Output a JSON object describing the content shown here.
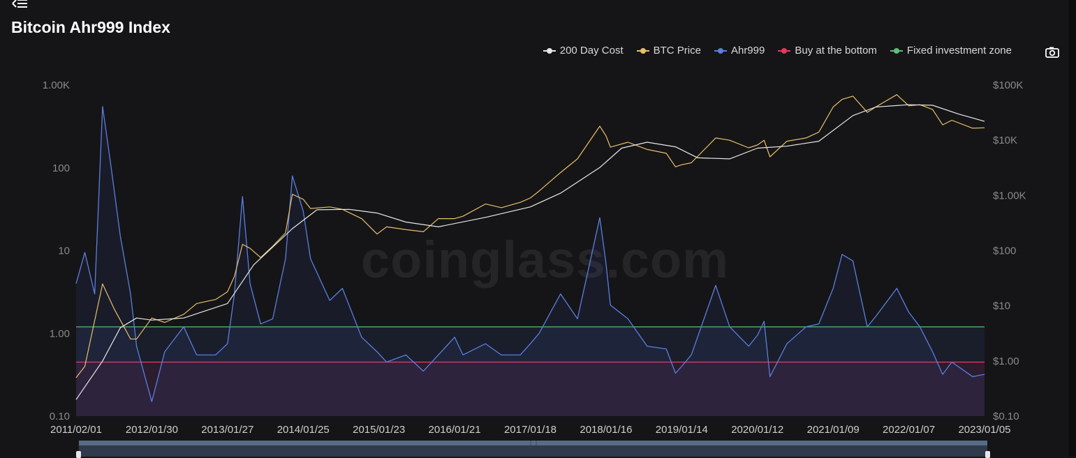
{
  "header": {
    "title": "Bitcoin Ahr999 Index",
    "menu_icon": "menu-collapse-icon",
    "camera_icon": "camera-icon"
  },
  "legend": [
    {
      "label": "200 Day Cost",
      "color": "#e8e8e8"
    },
    {
      "label": "BTC Price",
      "color": "#e9bf6a"
    },
    {
      "label": "Ahr999",
      "color": "#5b7fe0"
    },
    {
      "label": "Buy at the bottom",
      "color": "#e3395a"
    },
    {
      "label": "Fixed investment zone",
      "color": "#5ec074"
    }
  ],
  "watermark": "coinglass.com",
  "chart_data": {
    "type": "line",
    "title": "Bitcoin Ahr999 Index",
    "left_axis": {
      "scale": "log",
      "range": [
        0.1,
        1000
      ],
      "ticks": [
        "1.00K",
        "100",
        "10",
        "1.00",
        "0.10"
      ]
    },
    "right_axis": {
      "scale": "log",
      "range": [
        0.1,
        100000
      ],
      "ticks": [
        "$100K",
        "$10K",
        "$1.00K",
        "$100",
        "$10",
        "$1.00",
        "$0.10"
      ]
    },
    "x_ticks": [
      "2011/02/01",
      "2012/01/30",
      "2013/01/27",
      "2014/01/25",
      "2015/01/23",
      "2016/01/21",
      "2017/01/18",
      "2018/01/16",
      "2019/01/14",
      "2020/01/12",
      "2021/01/09",
      "2022/01/07",
      "2023/01/05"
    ],
    "thresholds": [
      {
        "name": "Fixed investment zone",
        "value": 1.2,
        "color": "#5ec074"
      },
      {
        "name": "Buy at the bottom",
        "value": 0.45,
        "color": "#e3395a"
      }
    ],
    "series": [
      {
        "name": "Ahr999",
        "axis": "left",
        "color": "#5b7fe0",
        "x": [
          "2011/02/01",
          "2011/03/15",
          "2011/05/01",
          "2011/06/08",
          "2011/07/15",
          "2011/09/01",
          "2011/10/20",
          "2011/11/18",
          "2012/01/30",
          "2012/04/01",
          "2012/07/01",
          "2012/09/01",
          "2012/12/01",
          "2013/01/27",
          "2013/03/01",
          "2013/04/09",
          "2013/05/15",
          "2013/07/05",
          "2013/09/01",
          "2013/11/01",
          "2013/12/04",
          "2014/01/25",
          "2014/03/01",
          "2014/06/01",
          "2014/08/01",
          "2014/11/01",
          "2015/01/14",
          "2015/03/01",
          "2015/06/01",
          "2015/08/24",
          "2015/11/04",
          "2016/01/21",
          "2016/03/01",
          "2016/06/17",
          "2016/09/01",
          "2016/12/01",
          "2017/01/18",
          "2017/03/01",
          "2017/06/12",
          "2017/09/01",
          "2017/12/17",
          "2018/01/16",
          "2018/02/06",
          "2018/05/01",
          "2018/08/01",
          "2018/11/01",
          "2018/12/15",
          "2019/01/14",
          "2019/03/01",
          "2019/06/26",
          "2019/09/01",
          "2019/12/01",
          "2020/01/12",
          "2020/02/13",
          "2020/03/12",
          "2020/06/01",
          "2020/09/01",
          "2020/11/01",
          "2021/01/09",
          "2021/02/21",
          "2021/04/14",
          "2021/06/22",
          "2021/08/01",
          "2021/11/10",
          "2022/01/07",
          "2022/03/01",
          "2022/05/01",
          "2022/06/18",
          "2022/08/01",
          "2022/11/09",
          "2023/01/05"
        ],
        "y": [
          4.0,
          9.5,
          3.0,
          550,
          120,
          15,
          3.0,
          0.7,
          0.15,
          0.6,
          1.2,
          0.55,
          0.55,
          0.75,
          3.0,
          45,
          4.0,
          1.3,
          1.5,
          8.0,
          80,
          30,
          8.0,
          2.5,
          3.5,
          0.9,
          0.6,
          0.45,
          0.55,
          0.35,
          0.55,
          0.9,
          0.55,
          0.75,
          0.55,
          0.55,
          0.75,
          1.0,
          3.0,
          1.5,
          25.0,
          7.0,
          2.2,
          1.5,
          0.7,
          0.65,
          0.33,
          0.4,
          0.55,
          3.8,
          1.2,
          0.7,
          0.95,
          1.4,
          0.3,
          0.75,
          1.2,
          1.3,
          3.5,
          9.0,
          7.5,
          1.2,
          1.6,
          3.5,
          1.8,
          1.2,
          0.6,
          0.32,
          0.45,
          0.3,
          0.32
        ]
      },
      {
        "name": "BTC Price",
        "axis": "right",
        "color": "#e9bf6a",
        "x": [
          "2011/02/01",
          "2011/03/15",
          "2011/06/08",
          "2011/08/01",
          "2011/10/20",
          "2011/11/18",
          "2012/01/30",
          "2012/04/01",
          "2012/07/01",
          "2012/09/01",
          "2012/12/01",
          "2013/01/27",
          "2013/03/01",
          "2013/04/09",
          "2013/05/15",
          "2013/07/05",
          "2013/09/01",
          "2013/11/01",
          "2013/12/04",
          "2014/01/25",
          "2014/03/01",
          "2014/06/01",
          "2014/08/01",
          "2014/11/01",
          "2015/01/14",
          "2015/03/01",
          "2015/06/01",
          "2015/08/24",
          "2015/11/04",
          "2016/01/21",
          "2016/03/01",
          "2016/06/17",
          "2016/09/01",
          "2016/12/01",
          "2017/01/18",
          "2017/03/01",
          "2017/06/12",
          "2017/09/01",
          "2017/12/17",
          "2018/01/16",
          "2018/02/06",
          "2018/05/01",
          "2018/08/01",
          "2018/11/01",
          "2018/12/15",
          "2019/01/14",
          "2019/03/01",
          "2019/06/26",
          "2019/09/01",
          "2019/12/01",
          "2020/01/12",
          "2020/02/13",
          "2020/03/12",
          "2020/06/01",
          "2020/09/01",
          "2020/11/01",
          "2021/01/09",
          "2021/02/21",
          "2021/04/14",
          "2021/06/22",
          "2021/08/01",
          "2021/11/10",
          "2022/01/07",
          "2022/03/01",
          "2022/05/01",
          "2022/06/18",
          "2022/08/01",
          "2022/11/09",
          "2023/01/05"
        ],
        "y": [
          0.5,
          0.8,
          25,
          9,
          2.5,
          2.5,
          6,
          5,
          7,
          11,
          13,
          18,
          34,
          130,
          110,
          75,
          120,
          210,
          1050,
          850,
          580,
          620,
          560,
          380,
          200,
          270,
          240,
          220,
          380,
          380,
          420,
          700,
          600,
          750,
          900,
          1200,
          2600,
          4600,
          18000,
          12000,
          7500,
          9200,
          6800,
          5800,
          3300,
          3600,
          3900,
          11000,
          10000,
          7300,
          8200,
          10000,
          5000,
          9600,
          11000,
          14000,
          40000,
          55000,
          63000,
          32000,
          40000,
          67000,
          42000,
          44000,
          36000,
          19000,
          23000,
          16500,
          16800
        ]
      },
      {
        "name": "200 Day Cost",
        "axis": "right",
        "color": "#e8e8e8",
        "x": [
          "2011/02/01",
          "2011/06/08",
          "2011/09/01",
          "2011/11/18",
          "2012/01/30",
          "2012/07/01",
          "2013/01/27",
          "2013/06/01",
          "2013/12/04",
          "2014/04/01",
          "2014/09/01",
          "2015/01/14",
          "2015/06/01",
          "2015/11/04",
          "2016/06/17",
          "2017/01/18",
          "2017/06/12",
          "2017/12/17",
          "2018/04/01",
          "2018/08/01",
          "2018/12/15",
          "2019/04/01",
          "2019/09/01",
          "2020/01/12",
          "2020/06/01",
          "2020/11/01",
          "2021/04/14",
          "2021/08/01",
          "2022/01/07",
          "2022/05/01",
          "2022/09/01",
          "2023/01/05"
        ],
        "y": [
          0.2,
          1.0,
          4.0,
          6.0,
          5.5,
          6.0,
          11,
          55,
          250,
          550,
          560,
          480,
          330,
          270,
          400,
          620,
          1100,
          3200,
          7200,
          9200,
          7600,
          4800,
          4600,
          7200,
          7800,
          9600,
          28000,
          40000,
          44000,
          43000,
          30000,
          22000
        ]
      }
    ]
  }
}
